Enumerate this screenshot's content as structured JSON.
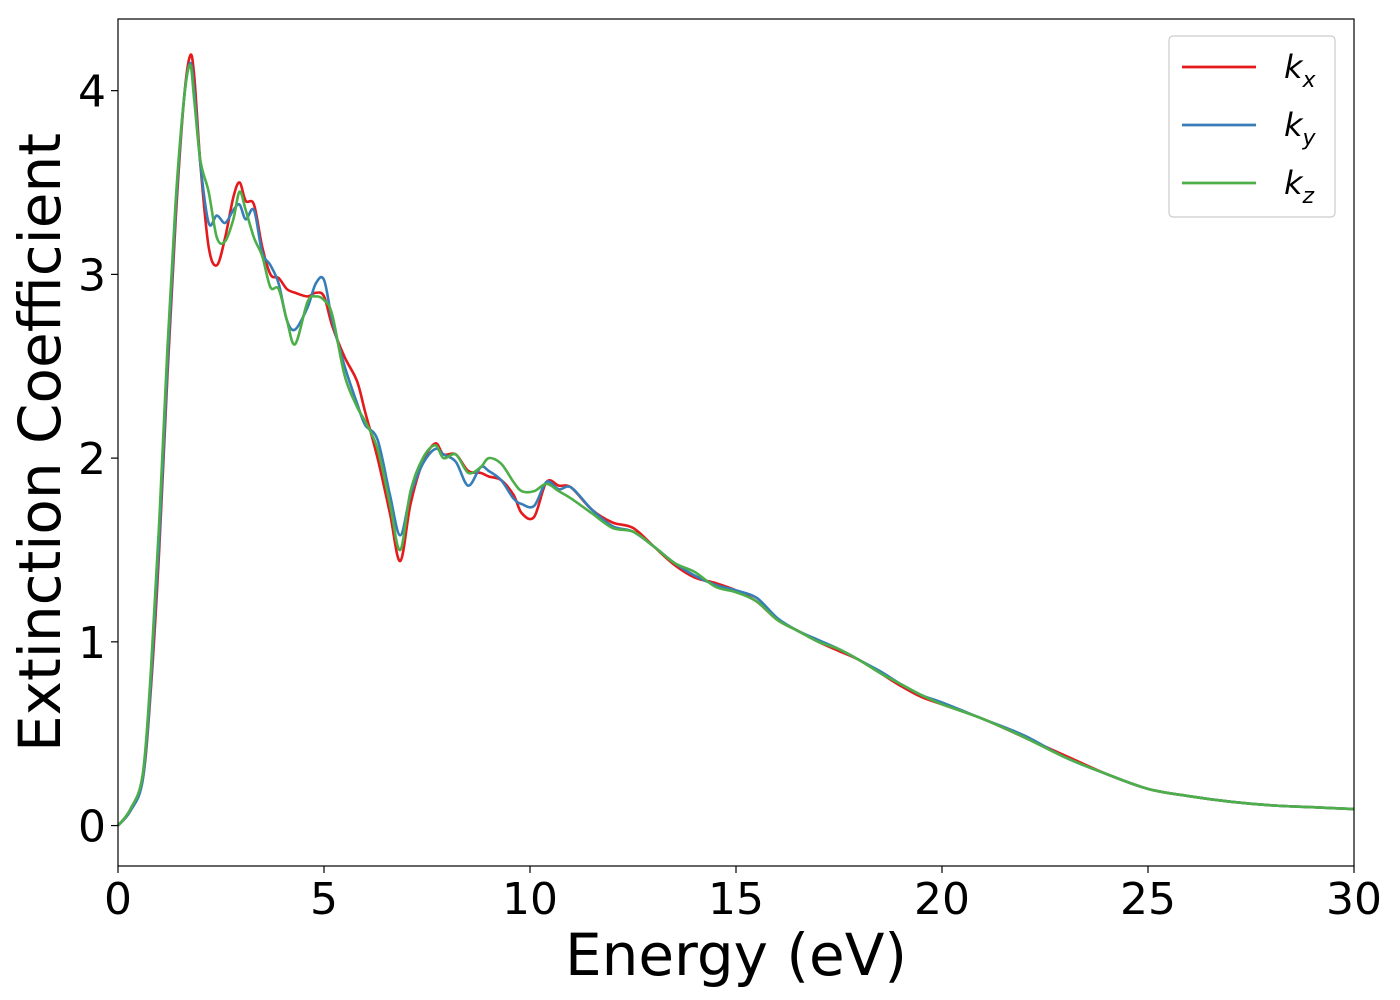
{
  "chart_data": {
    "type": "line",
    "title": "",
    "xlabel": "Energy (eV)",
    "ylabel": "Extinction Coefficient",
    "xlim": [
      0,
      30
    ],
    "ylim": [
      -0.22,
      4.39
    ],
    "xticks": [
      0,
      5,
      10,
      15,
      20,
      25,
      30
    ],
    "xtick_labels": [
      "0",
      "5",
      "10",
      "15",
      "20",
      "25",
      "30"
    ],
    "yticks": [
      0,
      1,
      2,
      3,
      4
    ],
    "ytick_labels": [
      "0",
      "1",
      "2",
      "3",
      "4"
    ],
    "grid": false,
    "legend_position": "top-right",
    "series": [
      {
        "name": "k_x",
        "label_base": "k",
        "label_sub": "x",
        "color": "#e41a1c",
        "x": [
          0,
          0.3,
          0.6,
          0.8,
          1.0,
          1.2,
          1.4,
          1.6,
          1.75,
          1.85,
          2.0,
          2.2,
          2.4,
          2.6,
          2.8,
          2.95,
          3.1,
          3.3,
          3.5,
          3.7,
          3.9,
          4.1,
          4.3,
          4.6,
          4.8,
          5.0,
          5.2,
          5.5,
          5.8,
          6.0,
          6.3,
          6.6,
          6.85,
          7.1,
          7.4,
          7.7,
          7.9,
          8.2,
          8.5,
          8.8,
          9.0,
          9.3,
          9.6,
          9.8,
          10.1,
          10.4,
          10.7,
          11.0,
          11.5,
          12.0,
          12.5,
          13.0,
          13.5,
          14.0,
          14.5,
          15.0,
          15.5,
          16.0,
          16.5,
          17.0,
          17.5,
          18.0,
          18.5,
          19.0,
          19.5,
          20.0,
          21.0,
          22.0,
          23.0,
          24.0,
          25.0,
          26.0,
          27.0,
          28.0,
          29.0,
          30.0
        ],
        "y": [
          0.0,
          0.08,
          0.25,
          0.75,
          1.5,
          2.45,
          3.3,
          3.95,
          4.19,
          4.08,
          3.6,
          3.15,
          3.05,
          3.2,
          3.42,
          3.5,
          3.4,
          3.38,
          3.15,
          3.0,
          2.98,
          2.92,
          2.9,
          2.88,
          2.9,
          2.88,
          2.72,
          2.55,
          2.42,
          2.25,
          2.0,
          1.7,
          1.44,
          1.75,
          1.98,
          2.08,
          2.02,
          2.02,
          1.93,
          1.92,
          1.9,
          1.88,
          1.8,
          1.7,
          1.68,
          1.87,
          1.85,
          1.84,
          1.72,
          1.65,
          1.62,
          1.52,
          1.42,
          1.35,
          1.32,
          1.28,
          1.22,
          1.12,
          1.06,
          1.0,
          0.95,
          0.9,
          0.83,
          0.76,
          0.7,
          0.66,
          0.58,
          0.48,
          0.38,
          0.28,
          0.2,
          0.16,
          0.13,
          0.11,
          0.1,
          0.09
        ]
      },
      {
        "name": "k_y",
        "label_base": "k",
        "label_sub": "y",
        "color": "#377eb8",
        "x": [
          0,
          0.3,
          0.6,
          0.8,
          1.0,
          1.2,
          1.4,
          1.6,
          1.75,
          1.85,
          2.0,
          2.2,
          2.4,
          2.6,
          2.8,
          2.95,
          3.1,
          3.3,
          3.5,
          3.7,
          3.9,
          4.1,
          4.3,
          4.6,
          4.8,
          5.0,
          5.2,
          5.5,
          5.8,
          6.0,
          6.3,
          6.6,
          6.85,
          7.1,
          7.4,
          7.7,
          7.9,
          8.2,
          8.5,
          8.8,
          9.0,
          9.3,
          9.6,
          9.8,
          10.1,
          10.4,
          10.7,
          11.0,
          11.5,
          12.0,
          12.5,
          13.0,
          13.5,
          14.0,
          14.5,
          15.0,
          15.5,
          16.0,
          16.5,
          17.0,
          17.5,
          18.0,
          18.5,
          19.0,
          19.5,
          20.0,
          21.0,
          22.0,
          23.0,
          24.0,
          25.0,
          26.0,
          27.0,
          28.0,
          29.0,
          30.0
        ],
        "y": [
          0.0,
          0.08,
          0.25,
          0.78,
          1.55,
          2.5,
          3.35,
          3.95,
          4.15,
          4.0,
          3.6,
          3.28,
          3.32,
          3.28,
          3.35,
          3.38,
          3.3,
          3.35,
          3.12,
          3.05,
          2.95,
          2.75,
          2.7,
          2.82,
          2.95,
          2.97,
          2.75,
          2.5,
          2.3,
          2.18,
          2.1,
          1.8,
          1.58,
          1.8,
          1.97,
          2.05,
          2.02,
          1.98,
          1.85,
          1.95,
          1.93,
          1.88,
          1.78,
          1.75,
          1.74,
          1.87,
          1.83,
          1.84,
          1.72,
          1.63,
          1.6,
          1.52,
          1.43,
          1.36,
          1.31,
          1.28,
          1.24,
          1.13,
          1.06,
          1.01,
          0.96,
          0.9,
          0.84,
          0.77,
          0.71,
          0.67,
          0.58,
          0.49,
          0.37,
          0.28,
          0.2,
          0.16,
          0.13,
          0.11,
          0.1,
          0.09
        ]
      },
      {
        "name": "k_z",
        "label_base": "k",
        "label_sub": "z",
        "color": "#4daf4a",
        "x": [
          0,
          0.3,
          0.6,
          0.8,
          1.0,
          1.2,
          1.4,
          1.6,
          1.75,
          1.85,
          2.0,
          2.2,
          2.4,
          2.6,
          2.8,
          2.95,
          3.1,
          3.3,
          3.5,
          3.7,
          3.9,
          4.1,
          4.3,
          4.6,
          4.8,
          5.0,
          5.2,
          5.5,
          5.8,
          6.0,
          6.3,
          6.6,
          6.85,
          7.1,
          7.4,
          7.7,
          7.9,
          8.2,
          8.5,
          8.8,
          9.0,
          9.3,
          9.6,
          9.8,
          10.1,
          10.4,
          10.7,
          11.0,
          11.5,
          12.0,
          12.5,
          13.0,
          13.5,
          14.0,
          14.5,
          15.0,
          15.5,
          16.0,
          16.5,
          17.0,
          17.5,
          18.0,
          18.5,
          19.0,
          19.5,
          20.0,
          21.0,
          22.0,
          23.0,
          24.0,
          25.0,
          26.0,
          27.0,
          28.0,
          29.0,
          30.0
        ],
        "y": [
          0.0,
          0.09,
          0.28,
          0.85,
          1.65,
          2.6,
          3.4,
          3.95,
          4.14,
          3.95,
          3.62,
          3.45,
          3.2,
          3.18,
          3.3,
          3.45,
          3.35,
          3.2,
          3.1,
          2.93,
          2.92,
          2.75,
          2.62,
          2.85,
          2.88,
          2.86,
          2.78,
          2.45,
          2.28,
          2.2,
          2.05,
          1.75,
          1.5,
          1.82,
          2.0,
          2.07,
          2.0,
          2.02,
          1.92,
          1.95,
          2.0,
          1.97,
          1.87,
          1.82,
          1.82,
          1.86,
          1.82,
          1.78,
          1.7,
          1.62,
          1.6,
          1.52,
          1.43,
          1.38,
          1.3,
          1.27,
          1.22,
          1.12,
          1.06,
          1.0,
          0.96,
          0.9,
          0.83,
          0.77,
          0.71,
          0.66,
          0.58,
          0.48,
          0.37,
          0.28,
          0.2,
          0.16,
          0.13,
          0.11,
          0.1,
          0.09
        ]
      }
    ]
  }
}
